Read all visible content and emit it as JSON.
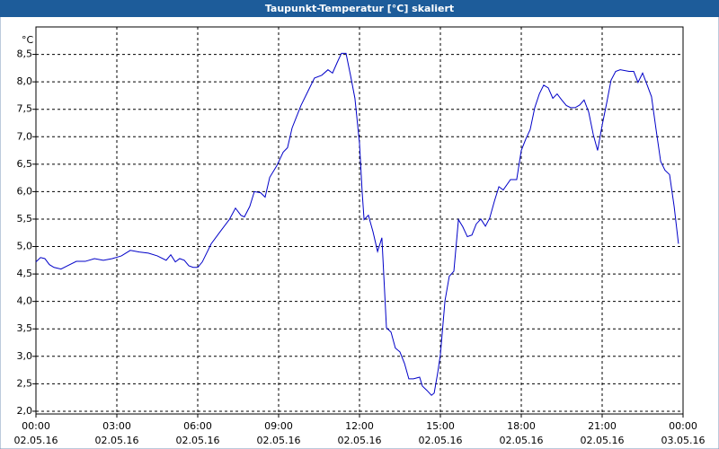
{
  "chart_data": {
    "type": "line",
    "title": "Taupunkt-Temperatur [°C] skaliert",
    "y_label": "°C",
    "x": [
      0,
      0.17,
      0.33,
      0.5,
      0.67,
      0.93,
      1.17,
      1.5,
      1.83,
      2.17,
      2.5,
      2.83,
      3.17,
      3.5,
      3.83,
      4.17,
      4.5,
      4.83,
      5,
      5.17,
      5.33,
      5.5,
      5.67,
      5.83,
      6,
      6.17,
      6.5,
      6.83,
      7.17,
      7.4,
      7.6,
      7.73,
      7.93,
      8.1,
      8.33,
      8.5,
      8.67,
      8.93,
      9.17,
      9.33,
      9.5,
      9.83,
      10.17,
      10.33,
      10.6,
      10.83,
      11,
      11.17,
      11.33,
      11.5,
      11.67,
      11.83,
      12,
      12.1,
      12.17,
      12.33,
      12.5,
      12.67,
      12.83,
      13,
      13.17,
      13.33,
      13.5,
      13.67,
      13.83,
      14,
      14.23,
      14.33,
      14.5,
      14.67,
      14.77,
      14.9,
      15,
      15.17,
      15.33,
      15.5,
      15.67,
      15.83,
      16,
      16.17,
      16.33,
      16.5,
      16.67,
      16.83,
      17,
      17.17,
      17.33,
      17.6,
      17.83,
      18,
      18.17,
      18.33,
      18.5,
      18.67,
      18.83,
      19,
      19.17,
      19.33,
      19.5,
      19.67,
      19.83,
      20,
      20.17,
      20.33,
      20.5,
      20.67,
      20.83,
      21,
      21.17,
      21.33,
      21.5,
      21.67,
      22,
      22.17,
      22.33,
      22.5,
      22.67,
      22.83,
      23,
      23.17,
      23.33,
      23.5,
      23.67,
      23.83
    ],
    "values": [
      4.72,
      4.8,
      4.78,
      4.67,
      4.62,
      4.59,
      4.65,
      4.73,
      4.73,
      4.78,
      4.75,
      4.78,
      4.83,
      4.93,
      4.9,
      4.88,
      4.83,
      4.75,
      4.85,
      4.72,
      4.78,
      4.75,
      4.65,
      4.62,
      4.62,
      4.72,
      5.05,
      5.27,
      5.49,
      5.7,
      5.57,
      5.54,
      5.73,
      6.0,
      5.98,
      5.9,
      6.26,
      6.47,
      6.72,
      6.8,
      7.16,
      7.57,
      7.91,
      8.07,
      8.12,
      8.22,
      8.16,
      8.35,
      8.52,
      8.52,
      8.11,
      7.7,
      6.88,
      5.98,
      5.49,
      5.57,
      5.27,
      4.91,
      5.16,
      3.52,
      3.44,
      3.15,
      3.08,
      2.87,
      2.59,
      2.59,
      2.62,
      2.46,
      2.38,
      2.29,
      2.33,
      2.7,
      3.03,
      4.01,
      4.46,
      4.55,
      5.49,
      5.36,
      5.18,
      5.21,
      5.41,
      5.5,
      5.37,
      5.52,
      5.82,
      6.09,
      6.03,
      6.22,
      6.22,
      6.75,
      6.96,
      7.13,
      7.53,
      7.78,
      7.94,
      7.89,
      7.7,
      7.78,
      7.67,
      7.57,
      7.53,
      7.53,
      7.58,
      7.67,
      7.45,
      7.04,
      6.75,
      7.21,
      7.62,
      8.03,
      8.19,
      8.22,
      8.19,
      8.19,
      7.99,
      8.16,
      7.94,
      7.73,
      7.13,
      6.55,
      6.39,
      6.31,
      5.73,
      5.05
    ],
    "color": "#0000c8",
    "xlim": [
      0,
      24
    ],
    "xticks": [
      {
        "value": 0,
        "label": "00:00",
        "date": "02.05.16"
      },
      {
        "value": 3,
        "label": "03:00",
        "date": "02.05.16"
      },
      {
        "value": 6,
        "label": "06:00",
        "date": "02.05.16"
      },
      {
        "value": 9,
        "label": "09:00",
        "date": "02.05.16"
      },
      {
        "value": 12,
        "label": "12:00",
        "date": "02.05.16"
      },
      {
        "value": 15,
        "label": "15:00",
        "date": "02.05.16"
      },
      {
        "value": 18,
        "label": "18:00",
        "date": "02.05.16"
      },
      {
        "value": 21,
        "label": "21:00",
        "date": "02.05.16"
      },
      {
        "value": 24,
        "label": "00:00",
        "date": "03.05.16"
      }
    ],
    "ylim": [
      1.95,
      9.0
    ],
    "yticks": [
      {
        "value": 2,
        "label": "2,0"
      },
      {
        "value": 2.5,
        "label": "2,5"
      },
      {
        "value": 3,
        "label": "3,0"
      },
      {
        "value": 3.5,
        "label": "3,5"
      },
      {
        "value": 4,
        "label": "4,0"
      },
      {
        "value": 4.5,
        "label": "4,5"
      },
      {
        "value": 5,
        "label": "5,0"
      },
      {
        "value": 5.5,
        "label": "5,5"
      },
      {
        "value": 6,
        "label": "6,0"
      },
      {
        "value": 6.5,
        "label": "6,5"
      },
      {
        "value": 7,
        "label": "7,0"
      },
      {
        "value": 7.5,
        "label": "7,5"
      },
      {
        "value": 8,
        "label": "8,0"
      },
      {
        "value": 8.5,
        "label": "8,5"
      }
    ],
    "grid": true
  }
}
